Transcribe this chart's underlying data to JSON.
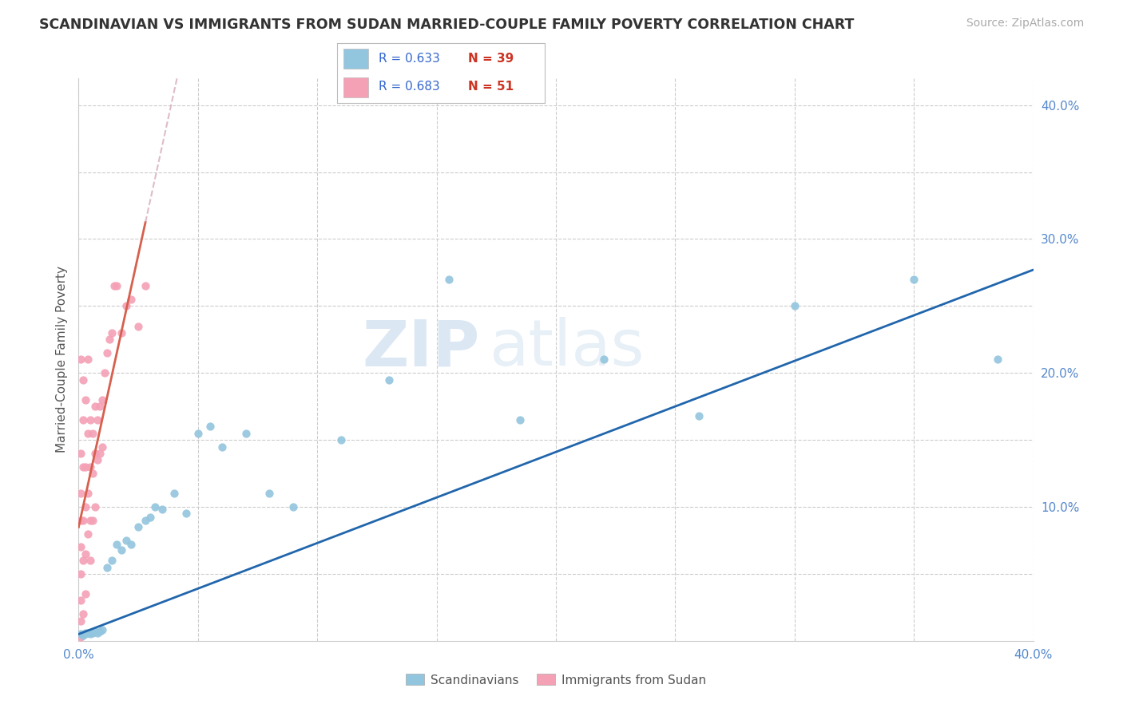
{
  "title": "SCANDINAVIAN VS IMMIGRANTS FROM SUDAN MARRIED-COUPLE FAMILY POVERTY CORRELATION CHART",
  "source": "Source: ZipAtlas.com",
  "ylabel": "Married-Couple Family Poverty",
  "xlim": [
    0.0,
    0.4
  ],
  "ylim": [
    0.0,
    0.42
  ],
  "scandinavian_color": "#92c5de",
  "sudan_color": "#f4a0b5",
  "line_scandinavian_color": "#2166ac",
  "line_sudan_color": "#d6604d",
  "line_sudan_dash_color": "#d0a0b0",
  "R_scandinavian": 0.633,
  "N_scandinavian": 39,
  "R_sudan": 0.683,
  "N_sudan": 51,
  "watermark_zip": "ZIP",
  "watermark_atlas": "atlas",
  "background_color": "#ffffff",
  "grid_color": "#cccccc",
  "sc_x": [
    0.001,
    0.002,
    0.003,
    0.003,
    0.004,
    0.005,
    0.006,
    0.007,
    0.008,
    0.009,
    0.01,
    0.012,
    0.014,
    0.016,
    0.018,
    0.02,
    0.022,
    0.025,
    0.028,
    0.03,
    0.032,
    0.035,
    0.04,
    0.045,
    0.05,
    0.055,
    0.06,
    0.07,
    0.08,
    0.09,
    0.11,
    0.13,
    0.155,
    0.185,
    0.22,
    0.26,
    0.3,
    0.35,
    0.385
  ],
  "sc_y": [
    0.005,
    0.004,
    0.006,
    0.005,
    0.006,
    0.005,
    0.006,
    0.007,
    0.006,
    0.007,
    0.008,
    0.055,
    0.06,
    0.072,
    0.068,
    0.075,
    0.072,
    0.085,
    0.09,
    0.092,
    0.1,
    0.098,
    0.11,
    0.095,
    0.155,
    0.16,
    0.145,
    0.155,
    0.11,
    0.1,
    0.15,
    0.195,
    0.27,
    0.165,
    0.21,
    0.168,
    0.25,
    0.27,
    0.21
  ],
  "su_x": [
    0.001,
    0.001,
    0.001,
    0.001,
    0.001,
    0.001,
    0.001,
    0.001,
    0.001,
    0.002,
    0.002,
    0.002,
    0.002,
    0.002,
    0.002,
    0.003,
    0.003,
    0.003,
    0.003,
    0.003,
    0.004,
    0.004,
    0.004,
    0.004,
    0.005,
    0.005,
    0.005,
    0.005,
    0.006,
    0.006,
    0.006,
    0.007,
    0.007,
    0.007,
    0.008,
    0.008,
    0.009,
    0.009,
    0.01,
    0.01,
    0.011,
    0.012,
    0.013,
    0.014,
    0.015,
    0.016,
    0.018,
    0.02,
    0.022,
    0.025,
    0.028
  ],
  "su_y": [
    0.003,
    0.015,
    0.03,
    0.05,
    0.07,
    0.09,
    0.11,
    0.14,
    0.21,
    0.02,
    0.06,
    0.09,
    0.13,
    0.165,
    0.195,
    0.035,
    0.065,
    0.1,
    0.13,
    0.18,
    0.08,
    0.11,
    0.155,
    0.21,
    0.06,
    0.09,
    0.13,
    0.165,
    0.09,
    0.125,
    0.155,
    0.1,
    0.14,
    0.175,
    0.135,
    0.165,
    0.14,
    0.175,
    0.145,
    0.18,
    0.2,
    0.215,
    0.225,
    0.23,
    0.265,
    0.265,
    0.23,
    0.25,
    0.255,
    0.235,
    0.265
  ]
}
